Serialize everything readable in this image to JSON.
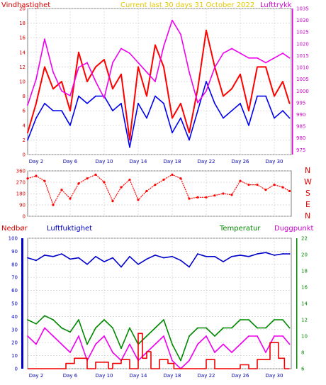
{
  "chart_data": [
    {
      "type": "line",
      "title": "Current last 30 days 31 October 2022",
      "left_label": "Vindhastighet",
      "right_label": "Lufttrykk",
      "x_ticks": [
        "Day 2",
        "Day 6",
        "Day 10",
        "Day 14",
        "Day 18",
        "Day 22",
        "Day 26",
        "Day 30"
      ],
      "x_tick_days": [
        2,
        6,
        10,
        14,
        18,
        22,
        26,
        30
      ],
      "xlim": [
        1,
        32
      ],
      "y_left_ticks": [
        "0",
        "2",
        "4",
        "6",
        "8",
        "10",
        "12",
        "14",
        "16",
        "18",
        "20"
      ],
      "ylim_left": [
        0,
        20
      ],
      "y_right_ticks": [
        "975",
        "980",
        "985",
        "990",
        "995",
        "1000",
        "1005",
        "1010",
        "1015",
        "1020",
        "1025",
        "1030",
        "1035"
      ],
      "ylim_right": [
        973,
        1035
      ],
      "series": [
        {
          "axis": "left",
          "color": "#ff0000",
          "x": [
            1,
            2,
            3,
            4,
            5,
            6,
            7,
            8,
            9,
            10,
            11,
            12,
            13,
            14,
            15,
            16,
            17,
            18,
            19,
            20,
            21,
            22,
            23,
            24,
            25,
            26,
            27,
            28,
            29,
            30,
            31,
            31.8
          ],
          "values": [
            3,
            7,
            12,
            9,
            10,
            6,
            14,
            10,
            12,
            13,
            9,
            11,
            2,
            12,
            8,
            15,
            12,
            5,
            7,
            3,
            9,
            17,
            12,
            8,
            9,
            11,
            6,
            12,
            12,
            8,
            10,
            7
          ]
        },
        {
          "axis": "left",
          "color": "#0000ee",
          "x": [
            1,
            2,
            3,
            4,
            5,
            6,
            7,
            8,
            9,
            10,
            11,
            12,
            13,
            14,
            15,
            16,
            17,
            18,
            19,
            20,
            21,
            22,
            23,
            24,
            25,
            26,
            27,
            28,
            29,
            30,
            31,
            31.8
          ],
          "values": [
            2,
            5,
            7,
            6,
            6,
            4,
            8,
            7,
            8,
            8,
            6,
            7,
            1,
            7,
            5,
            8,
            7,
            3,
            5,
            2,
            6,
            10,
            7,
            5,
            6,
            7,
            4,
            8,
            8,
            5,
            6,
            5
          ]
        },
        {
          "axis": "right",
          "color": "#ee00ee",
          "x": [
            1,
            2,
            3,
            4,
            5,
            6,
            7,
            8,
            9,
            10,
            11,
            12,
            13,
            14,
            15,
            16,
            17,
            18,
            19,
            20,
            21,
            22,
            23,
            24,
            25,
            26,
            27,
            28,
            29,
            30,
            31,
            31.8
          ],
          "values": [
            994,
            1005,
            1022,
            1008,
            1000,
            998,
            1010,
            1012,
            1004,
            997,
            1012,
            1018,
            1016,
            1012,
            1008,
            1004,
            1019,
            1030,
            1024,
            1008,
            995,
            1000,
            1010,
            1016,
            1018,
            1016,
            1014,
            1014,
            1012,
            1014,
            1016,
            1014
          ]
        }
      ]
    },
    {
      "type": "scatter",
      "right_labels": [
        "N",
        "W",
        "S",
        "E",
        "N"
      ],
      "y_ticks": [
        "0",
        "90",
        "180",
        "270",
        "360"
      ],
      "ylim": [
        0,
        360
      ],
      "xlim": [
        1,
        32
      ],
      "color": "#ff0000",
      "x": [
        1,
        2,
        3,
        4,
        5,
        6,
        7,
        8,
        9,
        10,
        11,
        12,
        13,
        14,
        15,
        16,
        17,
        18,
        19,
        20,
        21,
        22,
        23,
        24,
        25,
        26,
        27,
        28,
        29,
        30,
        31,
        31.8
      ],
      "values": [
        300,
        320,
        280,
        90,
        210,
        140,
        260,
        300,
        330,
        270,
        120,
        230,
        290,
        130,
        200,
        250,
        290,
        330,
        300,
        140,
        150,
        150,
        165,
        180,
        170,
        280,
        250,
        250,
        210,
        250,
        230,
        200
      ]
    },
    {
      "type": "line",
      "left_labels": [
        "Nedbør",
        "Luftfuktighet"
      ],
      "right_labels": [
        "Temperatur",
        "Duggpunkt"
      ],
      "x_ticks": [
        "Day 2",
        "Day 6",
        "Day 10",
        "Day 14",
        "Day 18",
        "Day 22",
        "Day 26",
        "Day 30"
      ],
      "x_tick_days": [
        2,
        6,
        10,
        14,
        18,
        22,
        26,
        30
      ],
      "xlim": [
        1,
        32
      ],
      "y_left_ticks": [
        "0",
        "10",
        "20",
        "30",
        "40",
        "50",
        "60",
        "70",
        "80",
        "90",
        "100"
      ],
      "ylim_left": [
        0,
        100
      ],
      "y_right_ticks": [
        "6",
        "8",
        "10",
        "12",
        "14",
        "16",
        "18",
        "20",
        "22"
      ],
      "ylim_right": [
        6,
        22
      ],
      "series": [
        {
          "axis": "left",
          "color": "#0000cc",
          "x": [
            1,
            2,
            3,
            4,
            5,
            6,
            7,
            8,
            9,
            10,
            11,
            12,
            13,
            14,
            15,
            16,
            17,
            18,
            19,
            20,
            21,
            22,
            23,
            24,
            25,
            26,
            27,
            28,
            29,
            30,
            31,
            31.8
          ],
          "values": [
            85,
            83,
            87,
            86,
            88,
            84,
            85,
            80,
            86,
            82,
            85,
            78,
            86,
            80,
            84,
            87,
            85,
            86,
            83,
            78,
            88,
            86,
            86,
            82,
            86,
            87,
            86,
            88,
            89,
            87,
            88,
            88
          ]
        },
        {
          "axis": "right",
          "color": "#008800",
          "x": [
            1,
            2,
            3,
            4,
            5,
            6,
            7,
            8,
            9,
            10,
            11,
            12,
            13,
            14,
            15,
            16,
            17,
            18,
            19,
            20,
            21,
            22,
            23,
            24,
            25,
            26,
            27,
            28,
            29,
            30,
            31,
            31.8
          ],
          "values": [
            12,
            11.5,
            12.5,
            12,
            11,
            10.5,
            12,
            9,
            11,
            12,
            11,
            8.5,
            11,
            9,
            10,
            11,
            12,
            9,
            7,
            10,
            11,
            11,
            10,
            11,
            11,
            12,
            12,
            11,
            11,
            12,
            12,
            11
          ]
        },
        {
          "axis": "right",
          "color": "#ee00ee",
          "x": [
            1,
            2,
            3,
            4,
            5,
            6,
            7,
            8,
            9,
            10,
            11,
            12,
            13,
            14,
            15,
            16,
            17,
            18,
            19,
            20,
            21,
            22,
            23,
            24,
            25,
            26,
            27,
            28,
            29,
            30,
            31,
            31.8
          ],
          "values": [
            10,
            9,
            11,
            10,
            9,
            8,
            10,
            7,
            9,
            10,
            8,
            7,
            9,
            7,
            8,
            9,
            10,
            7,
            6,
            7,
            9,
            10,
            8,
            9,
            8,
            9,
            10,
            10,
            8,
            10,
            10,
            9
          ]
        },
        {
          "axis": "left",
          "type": "step",
          "color": "#ee0000",
          "x": [
            1,
            3,
            4.5,
            5.5,
            6.5,
            8,
            9,
            10.5,
            11,
            12,
            13,
            14,
            14.5,
            15,
            15.5,
            16.5,
            17.5,
            18.2,
            19,
            21,
            22,
            23,
            24,
            26,
            27,
            28,
            29.5,
            30.5,
            31.2,
            31.8
          ],
          "values": [
            0,
            0,
            0,
            4,
            8,
            0,
            5,
            0,
            4,
            7,
            0,
            27,
            8,
            13,
            0,
            7,
            4,
            0,
            0,
            0,
            7,
            0,
            0,
            3,
            0,
            7,
            20,
            8,
            0,
            0
          ]
        }
      ]
    }
  ]
}
